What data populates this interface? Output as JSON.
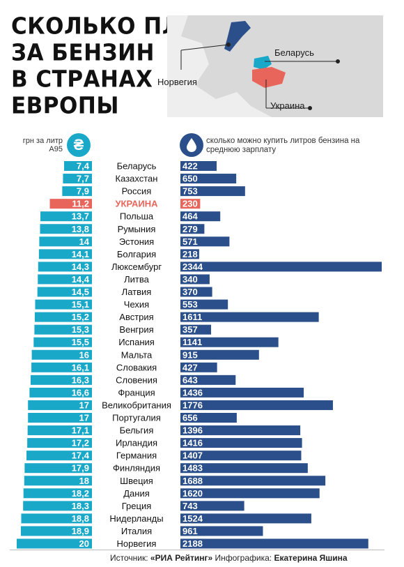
{
  "header": {
    "title_lines": [
      "СКОЛЬКО ПЛАТЯТ",
      "ЗА БЕНЗИН",
      "В СТРАНАХ",
      "ЕВРОПЫ"
    ]
  },
  "map": {
    "labels": {
      "belarus": "Беларусь",
      "norway": "Норвегия",
      "ukraine": "Украина"
    },
    "colors": {
      "land": "#d9d9d9",
      "norway": "#2a4f8a",
      "belarus": "#1aa8c9",
      "ukraine": "#e8655b"
    }
  },
  "legend": {
    "left_caption": "грн за литр А95",
    "right_caption": "сколько можно купить литров бензина на среднюю зарплату",
    "left_icon": "hryvnia-coin-icon",
    "left_icon_glyph": "₴",
    "right_icon": "fuel-drop-icon"
  },
  "colors": {
    "price_bar": "#1aa8c9",
    "liters_bar": "#2a4f8a",
    "highlight_bar": "#e8655b",
    "highlight_text": "#e8655b"
  },
  "chart_data": {
    "type": "bar",
    "highlight": "УКРАИНА",
    "categories": [
      "Беларусь",
      "Казахстан",
      "Россия",
      "УКРАИНА",
      "Польша",
      "Румыния",
      "Эстония",
      "Болгария",
      "Люксембург",
      "Литва",
      "Латвия",
      "Чехия",
      "Австрия",
      "Венгрия",
      "Испания",
      "Мальта",
      "Словакия",
      "Словения",
      "Франция",
      "Великобритания",
      "Португалия",
      "Бельгия",
      "Ирландия",
      "Германия",
      "Финляндия",
      "Швеция",
      "Дания",
      "Греция",
      "Нидерланды",
      "Италия",
      "Норвегия"
    ],
    "series": [
      {
        "name": "грн за литр А95",
        "labels": [
          "7,4",
          "7,7",
          "7,9",
          "11,2",
          "13,7",
          "13,8",
          "14",
          "14,1",
          "14,3",
          "14,4",
          "14,5",
          "15,1",
          "15,2",
          "15,3",
          "15,5",
          "16",
          "16,1",
          "16,3",
          "16,6",
          "17",
          "17",
          "17,1",
          "17,2",
          "17,4",
          "17,9",
          "18",
          "18,2",
          "18,3",
          "18,8",
          "18,9",
          "20"
        ],
        "values": [
          7.4,
          7.7,
          7.9,
          11.2,
          13.7,
          13.8,
          14,
          14.1,
          14.3,
          14.4,
          14.5,
          15.1,
          15.2,
          15.3,
          15.5,
          16,
          16.1,
          16.3,
          16.6,
          17,
          17,
          17.1,
          17.2,
          17.4,
          17.9,
          18,
          18.2,
          18.3,
          18.8,
          18.9,
          20
        ]
      },
      {
        "name": "сколько можно купить литров бензина на среднюю зарплату",
        "labels": [
          "422",
          "650",
          "753",
          "230",
          "464",
          "279",
          "571",
          "218",
          "2344",
          "340",
          "370",
          "553",
          "1611",
          "357",
          "1141",
          "915",
          "427",
          "643",
          "1436",
          "1776",
          "656",
          "1396",
          "1416",
          "1407",
          "1483",
          "1688",
          "1620",
          "743",
          "1524",
          "961",
          "2188"
        ],
        "values": [
          422,
          650,
          753,
          230,
          464,
          279,
          571,
          218,
          2344,
          340,
          370,
          553,
          1611,
          357,
          1141,
          915,
          427,
          643,
          1436,
          1776,
          656,
          1396,
          1416,
          1407,
          1483,
          1688,
          1620,
          743,
          1524,
          961,
          2188
        ]
      }
    ]
  },
  "footer": {
    "source_label": "Источник:",
    "source_name": "«РИА Рейтинг»",
    "author_label": "Инфографика:",
    "author_name": "Екатерина Яшина"
  }
}
